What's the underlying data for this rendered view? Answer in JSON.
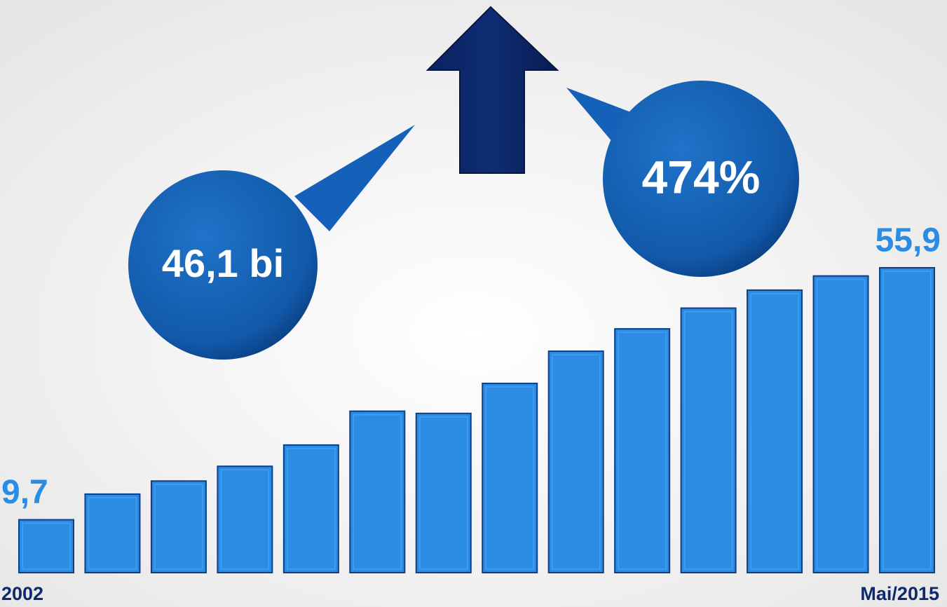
{
  "chart_data": {
    "type": "bar",
    "categories": [
      "2002",
      null,
      null,
      null,
      null,
      null,
      null,
      null,
      null,
      null,
      null,
      null,
      null,
      "Mai/2015"
    ],
    "values": [
      9.7,
      14.4,
      16.8,
      19.5,
      23.4,
      29.6,
      29.2,
      34.7,
      40.6,
      44.7,
      48.5,
      51.8,
      54.4,
      55.9
    ],
    "value_labels": [
      "9,7",
      null,
      null,
      null,
      null,
      null,
      null,
      null,
      null,
      null,
      null,
      null,
      null,
      "55,9"
    ],
    "color": "#2b8ce6",
    "annotations": [
      "46,1 bi",
      "474%"
    ]
  }
}
